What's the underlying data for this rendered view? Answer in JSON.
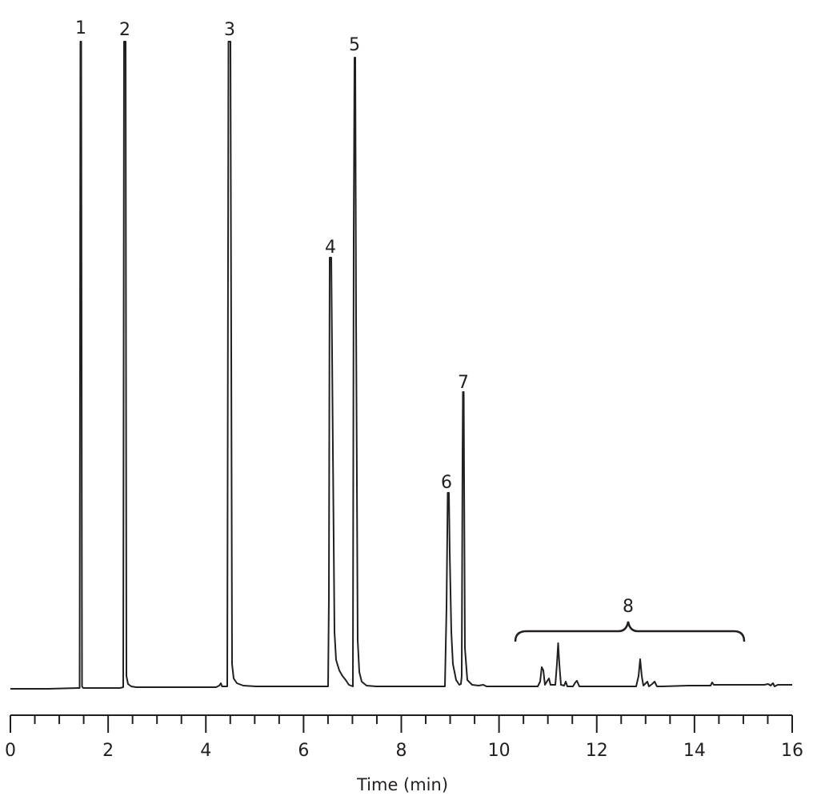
{
  "chart_data": {
    "type": "line",
    "title": "",
    "xlabel": "Time (min)",
    "ylabel": "",
    "xlim": [
      0,
      16
    ],
    "x_major_ticks": [
      0,
      2,
      4,
      6,
      8,
      10,
      12,
      14,
      16
    ],
    "x_minor_step": 0.5,
    "grid": false,
    "legend": null,
    "series": [
      {
        "name": "chromatogram",
        "peaks": [
          {
            "label": "1",
            "time": 1.45,
            "height": 1.0,
            "truncated": true
          },
          {
            "label": "2",
            "time": 2.35,
            "height": 1.0,
            "truncated": true
          },
          {
            "label": "",
            "time": 4.3,
            "height": 0.01
          },
          {
            "label": "3",
            "time": 4.5,
            "height": 1.0,
            "truncated": true
          },
          {
            "label": "4",
            "time": 6.55,
            "height": 0.665
          },
          {
            "label": "5",
            "time": 7.03,
            "height": 0.975
          },
          {
            "label": "6",
            "time": 8.97,
            "height": 0.305
          },
          {
            "label": "7",
            "time": 9.28,
            "height": 0.455
          },
          {
            "label": "",
            "time": 10.85,
            "height": 0.033
          },
          {
            "label": "",
            "time": 10.98,
            "height": 0.016
          },
          {
            "label": "",
            "time": 11.2,
            "height": 0.07
          },
          {
            "label": "",
            "time": 11.35,
            "height": 0.008
          },
          {
            "label": "",
            "time": 11.6,
            "height": 0.01
          },
          {
            "label": "",
            "time": 12.87,
            "height": 0.042
          },
          {
            "label": "",
            "time": 13.0,
            "height": 0.012
          },
          {
            "label": "",
            "time": 13.17,
            "height": 0.01
          },
          {
            "label": "",
            "time": 14.4,
            "height": 0.007
          }
        ]
      }
    ],
    "annotations": [
      {
        "text": "1",
        "x": 1.45
      },
      {
        "text": "2",
        "x": 2.35
      },
      {
        "text": "3",
        "x": 4.5
      },
      {
        "text": "4",
        "x": 6.55
      },
      {
        "text": "5",
        "x": 7.03
      },
      {
        "text": "6",
        "x": 8.97
      },
      {
        "text": "7",
        "x": 9.28
      },
      {
        "text": "8",
        "x_range": [
          10.3,
          15.0
        ],
        "type": "brace"
      }
    ]
  },
  "labels": {
    "p1": "1",
    "p2": "2",
    "p3": "3",
    "p4": "4",
    "p5": "5",
    "p6": "6",
    "p7": "7",
    "p8": "8",
    "xaxis_title": "Time (min)",
    "ticks": [
      "0",
      "2",
      "4",
      "6",
      "8",
      "10",
      "12",
      "14",
      "16"
    ]
  }
}
